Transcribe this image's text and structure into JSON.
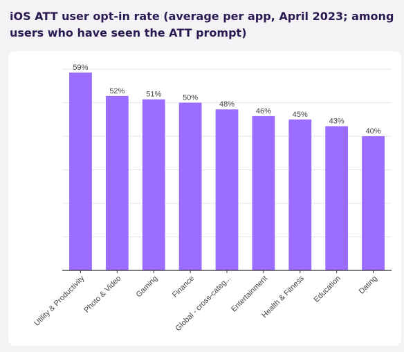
{
  "title": "iOS ATT user opt-in rate (average per app, April 2023; among users who have seen the ATT prompt)",
  "colors": {
    "bar": "#9b6dff",
    "title": "#2b1a52",
    "grid": "#e6e6ea",
    "axis": "#333333",
    "text": "#444444"
  },
  "chart_data": {
    "type": "bar",
    "title": "iOS ATT user opt-in rate (average per app, April 2023; among users who have seen the ATT prompt)",
    "categories": [
      "Utility & Productivity",
      "Photo & Video",
      "Gaming",
      "Finance",
      "Global - cross-categ...",
      "Entertainment",
      "Health & Fitness",
      "Education",
      "Dating"
    ],
    "values": [
      59,
      52,
      51,
      50,
      48,
      46,
      45,
      43,
      40
    ],
    "value_labels": [
      "59%",
      "52%",
      "51%",
      "50%",
      "48%",
      "46%",
      "45%",
      "43%",
      "40%"
    ],
    "xlabel": "",
    "ylabel": "",
    "ylim": [
      0,
      60
    ],
    "gridlines": [
      10,
      20,
      30,
      40,
      50,
      60
    ],
    "grid": true,
    "legend": "none"
  }
}
